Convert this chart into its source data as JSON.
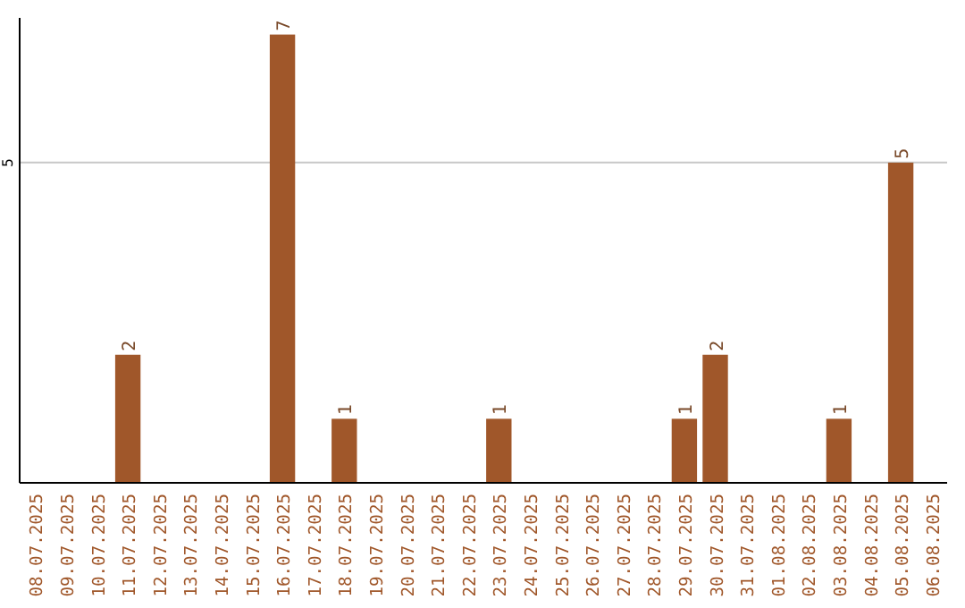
{
  "chart_data": {
    "type": "bar",
    "categories": [
      "08.07.2025",
      "09.07.2025",
      "10.07.2025",
      "11.07.2025",
      "12.07.2025",
      "13.07.2025",
      "14.07.2025",
      "15.07.2025",
      "16.07.2025",
      "17.07.2025",
      "18.07.2025",
      "19.07.2025",
      "20.07.2025",
      "21.07.2025",
      "22.07.2025",
      "23.07.2025",
      "24.07.2025",
      "25.07.2025",
      "26.07.2025",
      "27.07.2025",
      "28.07.2025",
      "29.07.2025",
      "30.07.2025",
      "31.07.2025",
      "01.08.2025",
      "02.08.2025",
      "03.08.2025",
      "04.08.2025",
      "05.08.2025",
      "06.08.2025"
    ],
    "values": [
      0,
      0,
      0,
      2,
      0,
      0,
      0,
      0,
      7,
      0,
      1,
      0,
      0,
      0,
      0,
      1,
      0,
      0,
      0,
      0,
      0,
      1,
      2,
      0,
      0,
      0,
      1,
      0,
      5,
      0
    ],
    "value_labels": [
      null,
      null,
      null,
      "2",
      null,
      null,
      null,
      null,
      "7",
      null,
      "1",
      null,
      null,
      null,
      null,
      "1",
      null,
      null,
      null,
      null,
      null,
      "1",
      "2",
      null,
      null,
      null,
      "1",
      null,
      "5",
      null
    ],
    "color": "#a0572a",
    "ylim": [
      0,
      7.26
    ],
    "yticks": [
      5
    ],
    "grid": "y"
  }
}
